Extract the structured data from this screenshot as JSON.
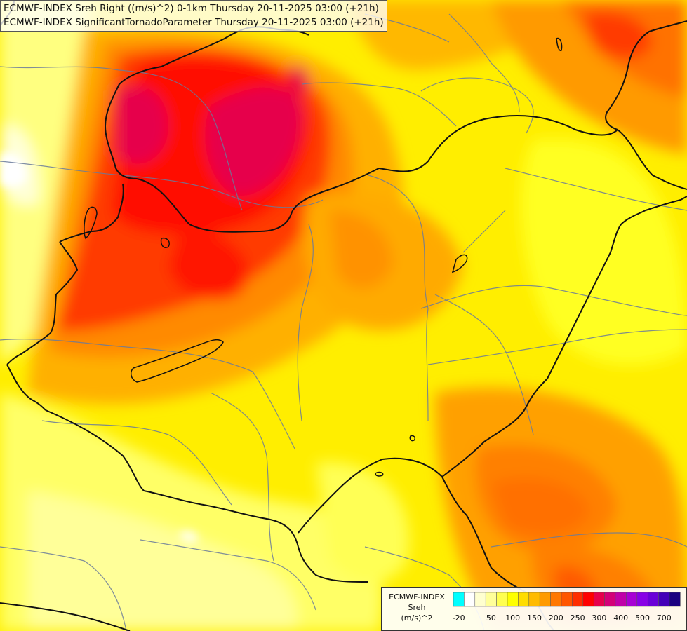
{
  "titles": {
    "line1": "ECMWF-INDEX Sreh Right ((m/s)^2) 0-1km Thursday 20-11-2025 03:00 (+21h)",
    "line2": "ECMWF-INDEX SignificantTornadoParameter Thursday 20-11-2025 03:00 (+21h)"
  },
  "legend": {
    "name_line1": "ECMWF-INDEX",
    "name_line2": "Sreh",
    "unit": "(m/s)^2",
    "colors": [
      "#00ffff",
      "#ffffff",
      "#ffffd0",
      "#ffff9a",
      "#ffff50",
      "#ffff00",
      "#ffdd00",
      "#ffbb00",
      "#ff9a00",
      "#ff7700",
      "#ff5500",
      "#ff2d00",
      "#ff0000",
      "#e6004c",
      "#d30078",
      "#c000a8",
      "#a800d4",
      "#8800e6",
      "#6a00d8",
      "#4400b8",
      "#1a0080"
    ],
    "ticks": [
      {
        "label": "-20",
        "index": 0.5
      },
      {
        "label": "50",
        "index": 3.5
      },
      {
        "label": "100",
        "index": 5.5
      },
      {
        "label": "150",
        "index": 7.5
      },
      {
        "label": "200",
        "index": 9.5
      },
      {
        "label": "250",
        "index": 11.5
      },
      {
        "label": "300",
        "index": 13.5
      },
      {
        "label": "400",
        "index": 15.5
      },
      {
        "label": "500",
        "index": 17.5
      },
      {
        "label": "700",
        "index": 19.5
      }
    ]
  }
}
